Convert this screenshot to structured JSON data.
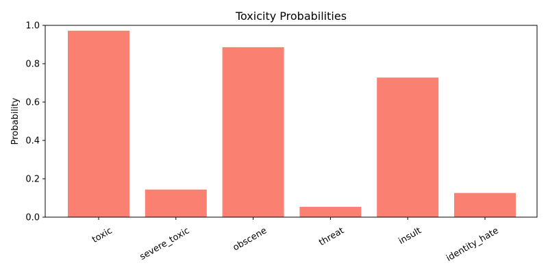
{
  "chart_data": {
    "type": "bar",
    "title": "Toxicity Probabilities",
    "xlabel": "",
    "ylabel": "Probability",
    "categories": [
      "toxic",
      "severe_toxic",
      "obscene",
      "threat",
      "insult",
      "identity_hate"
    ],
    "values": [
      0.972,
      0.144,
      0.886,
      0.054,
      0.728,
      0.126
    ],
    "ylim": [
      0,
      1
    ],
    "yticks": [
      "0.0",
      "0.2",
      "0.4",
      "0.6",
      "0.8",
      "1.0"
    ],
    "bar_color": "#fa8072",
    "grid": false,
    "xtick_rotation_deg": 30
  }
}
